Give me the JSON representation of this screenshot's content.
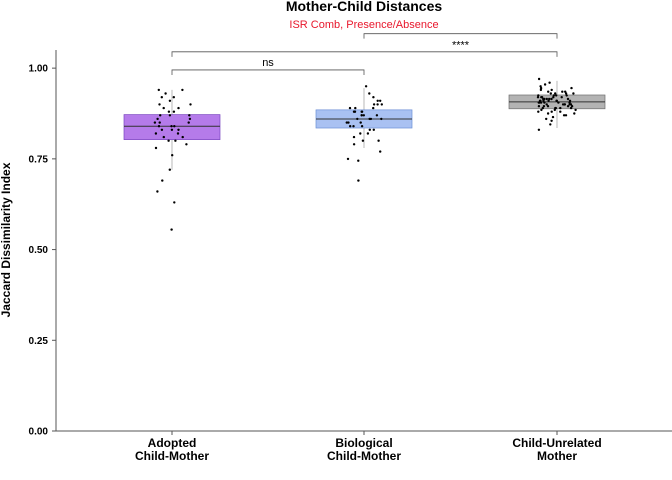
{
  "chart_data": {
    "type": "boxplot",
    "title": "Mother-Child Distances",
    "subtitle": "ISR Comb, Presence/Absence",
    "xlabel": "",
    "ylabel": "Jaccard Dissimilarity Index",
    "ylim": [
      0,
      1.05
    ],
    "yticks": [
      "0.00",
      "0.25",
      "0.50",
      "0.75",
      "1.00"
    ],
    "colors": {
      "subtitle": "#e8172c",
      "groups": [
        "#b57bea",
        "#a9c1f2",
        "#b3b3b3"
      ],
      "box_strokes": [
        "#7b46c0",
        "#6b8fd6",
        "#6e6e6e"
      ]
    },
    "groups": [
      {
        "label_lines": [
          "Adopted",
          "Child-Mother"
        ],
        "q1": 0.803,
        "median": 0.84,
        "q3": 0.872,
        "whisker_low": 0.72,
        "whisker_high": 0.94,
        "points": [
          0.555,
          0.63,
          0.66,
          0.69,
          0.72,
          0.76,
          0.78,
          0.79,
          0.8,
          0.8,
          0.81,
          0.81,
          0.82,
          0.82,
          0.83,
          0.83,
          0.83,
          0.84,
          0.84,
          0.84,
          0.85,
          0.85,
          0.85,
          0.86,
          0.86,
          0.87,
          0.87,
          0.87,
          0.88,
          0.88,
          0.89,
          0.89,
          0.9,
          0.9,
          0.91,
          0.92,
          0.92,
          0.93,
          0.94,
          0.94
        ]
      },
      {
        "label_lines": [
          "Biological",
          "Child-Mother"
        ],
        "q1": 0.835,
        "median": 0.86,
        "q3": 0.885,
        "whisker_low": 0.78,
        "whisker_high": 0.945,
        "points": [
          0.69,
          0.745,
          0.75,
          0.77,
          0.79,
          0.8,
          0.8,
          0.81,
          0.82,
          0.82,
          0.83,
          0.83,
          0.84,
          0.84,
          0.84,
          0.85,
          0.85,
          0.85,
          0.86,
          0.86,
          0.86,
          0.86,
          0.87,
          0.87,
          0.87,
          0.87,
          0.88,
          0.88,
          0.88,
          0.88,
          0.89,
          0.89,
          0.89,
          0.9,
          0.9,
          0.9,
          0.91,
          0.91,
          0.92,
          0.93,
          0.95
        ]
      },
      {
        "label_lines": [
          "Child-Unrelated",
          "Mother"
        ],
        "q1": 0.888,
        "median": 0.907,
        "q3": 0.926,
        "whisker_low": 0.835,
        "whisker_high": 0.965,
        "points": [
          0.83,
          0.845,
          0.855,
          0.86,
          0.865,
          0.87,
          0.87,
          0.875,
          0.875,
          0.88,
          0.88,
          0.88,
          0.885,
          0.885,
          0.885,
          0.89,
          0.89,
          0.89,
          0.89,
          0.89,
          0.895,
          0.895,
          0.895,
          0.895,
          0.895,
          0.9,
          0.9,
          0.9,
          0.9,
          0.9,
          0.9,
          0.905,
          0.905,
          0.905,
          0.905,
          0.905,
          0.905,
          0.91,
          0.91,
          0.91,
          0.91,
          0.91,
          0.91,
          0.91,
          0.915,
          0.915,
          0.915,
          0.915,
          0.915,
          0.915,
          0.92,
          0.92,
          0.92,
          0.92,
          0.92,
          0.925,
          0.925,
          0.925,
          0.925,
          0.93,
          0.93,
          0.93,
          0.93,
          0.935,
          0.935,
          0.935,
          0.94,
          0.94,
          0.945,
          0.945,
          0.95,
          0.955,
          0.96,
          0.97
        ]
      }
    ],
    "comparisons": [
      {
        "from": 0,
        "to": 1,
        "y": 0.995,
        "label": "ns"
      },
      {
        "from": 0,
        "to": 2,
        "y": 1.045,
        "label": ""
      },
      {
        "from": 1,
        "to": 2,
        "y": 1.095,
        "label": "****"
      }
    ]
  }
}
